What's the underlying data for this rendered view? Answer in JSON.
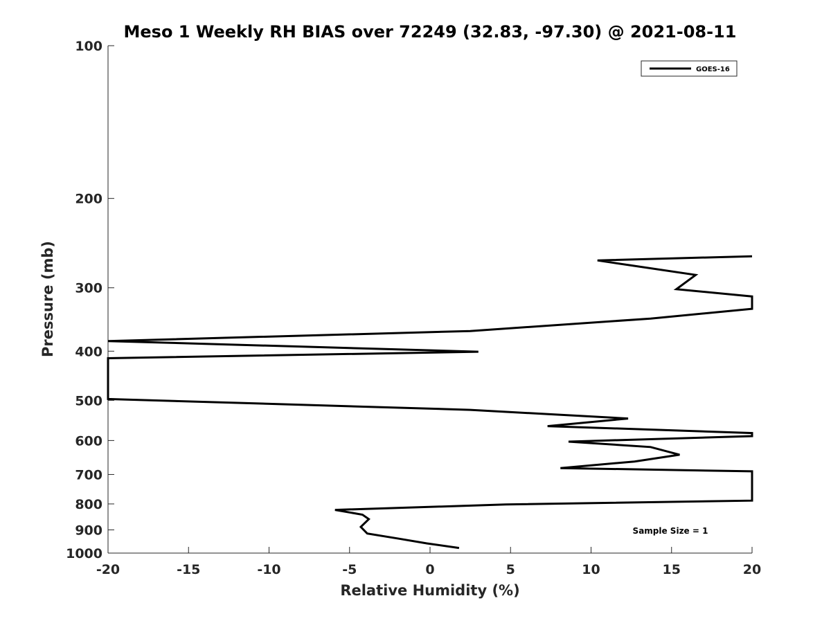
{
  "chart_data": {
    "type": "line",
    "title": "Meso 1 Weekly RH BIAS over 72249 (32.83, -97.30) @ 2021-08-11",
    "xlabel": "Relative Humidity (%)",
    "ylabel": "Pressure (mb)",
    "xlim": [
      -20,
      20
    ],
    "ylim": [
      100,
      1000
    ],
    "y_scale": "log",
    "y_reversed": true,
    "grid": false,
    "xticks": [
      "-20",
      "-15",
      "-10",
      "-5",
      "0",
      "5",
      "10",
      "15",
      "20"
    ],
    "yticks": [
      "100",
      "200",
      "300",
      "400",
      "500",
      "600",
      "700",
      "800",
      "900",
      "1000"
    ],
    "legend": {
      "position": "top-right",
      "entries": [
        "GOES-16"
      ]
    },
    "annotation": "Sample Size = 1",
    "series": [
      {
        "name": "GOES-16",
        "color": "#000000",
        "points": [
          [
            20,
            260
          ],
          [
            10.4,
            265
          ],
          [
            16.5,
            283
          ],
          [
            15.3,
            302
          ],
          [
            20,
            312
          ],
          [
            20,
            330
          ],
          [
            13.7,
            345
          ],
          [
            2.5,
            365
          ],
          [
            -20,
            382
          ],
          [
            3,
            401
          ],
          [
            -20,
            413
          ],
          [
            -20,
            497
          ],
          [
            -19,
            498
          ],
          [
            2.5,
            522
          ],
          [
            12.3,
            543
          ],
          [
            7.3,
            562
          ],
          [
            20,
            580
          ],
          [
            20,
            588
          ],
          [
            8.6,
            603
          ],
          [
            13.7,
            618
          ],
          [
            15.5,
            640
          ],
          [
            12.7,
            660
          ],
          [
            8.1,
            680
          ],
          [
            20,
            690
          ],
          [
            20,
            788
          ],
          [
            4.7,
            802
          ],
          [
            -5.9,
            822
          ],
          [
            -4.2,
            840
          ],
          [
            -3.8,
            857
          ],
          [
            -4.3,
            888
          ],
          [
            -3.9,
            915
          ],
          [
            -1.9,
            937
          ],
          [
            -0.2,
            957
          ],
          [
            1.8,
            977
          ]
        ]
      }
    ]
  }
}
